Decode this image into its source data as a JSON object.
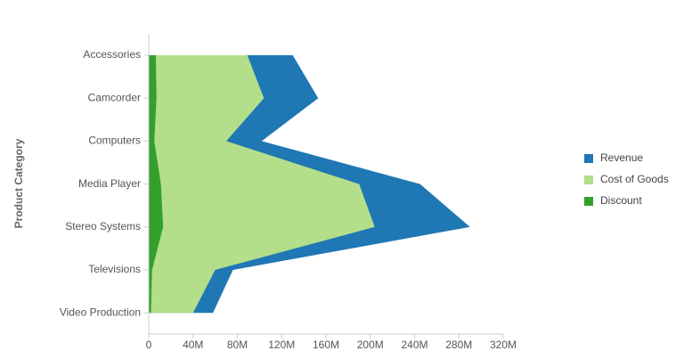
{
  "chart_data": {
    "type": "area",
    "orientation": "horizontal",
    "y_label": "Product Category",
    "categories": [
      "Accessories",
      "Camcorder",
      "Computers",
      "Media Player",
      "Stereo Systems",
      "Televisions",
      "Video Production"
    ],
    "series": [
      {
        "name": "Revenue",
        "color": "#1f77b4",
        "values": [
          130000000,
          153000000,
          102000000,
          245000000,
          290000000,
          76000000,
          58000000
        ]
      },
      {
        "name": "Cost of Goods",
        "color": "#b3de8a",
        "values": [
          89000000,
          104000000,
          70000000,
          190000000,
          204000000,
          60000000,
          40000000
        ]
      },
      {
        "name": "Discount",
        "color": "#33a02c",
        "values": [
          6400000,
          7000000,
          5000000,
          11000000,
          13000000,
          3000000,
          2000000
        ]
      }
    ],
    "xlim": [
      0,
      320000000
    ],
    "xticks": [
      0,
      {
        "value": 40000000,
        "label": "40M"
      },
      {
        "value": 80000000,
        "label": "80M"
      },
      {
        "value": 120000000,
        "label": "120M"
      },
      {
        "value": 160000000,
        "label": "160M"
      },
      {
        "value": 200000000,
        "label": "200M"
      },
      {
        "value": 240000000,
        "label": "240M"
      },
      {
        "value": 280000000,
        "label": "280M"
      },
      {
        "value": 320000000,
        "label": "320M"
      }
    ],
    "legend": "right"
  }
}
